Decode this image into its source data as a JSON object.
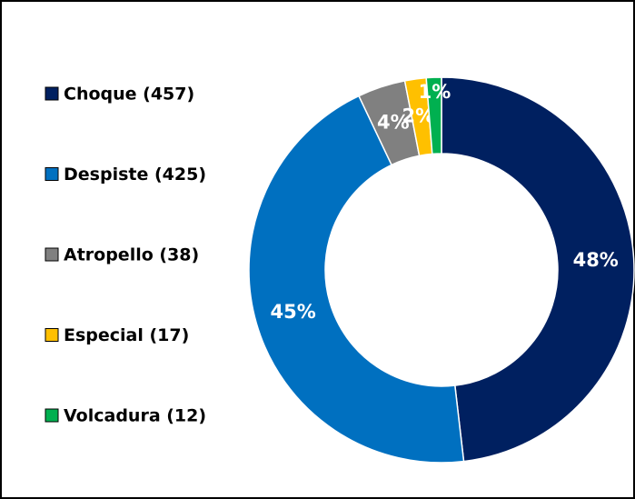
{
  "chart_data": {
    "type": "donut",
    "categories": [
      "Choque (457)",
      "Despiste (425)",
      "Atropello (38)",
      "Especial (17)",
      "Volcadura (12)"
    ],
    "values": [
      457,
      425,
      38,
      17,
      12
    ],
    "value_labels": [
      "48%",
      "45%",
      "4%",
      "2%",
      "1%"
    ],
    "colors": [
      "#002060",
      "#0070c0",
      "#808080",
      "#ffc000",
      "#00b050"
    ],
    "legend": "left"
  }
}
